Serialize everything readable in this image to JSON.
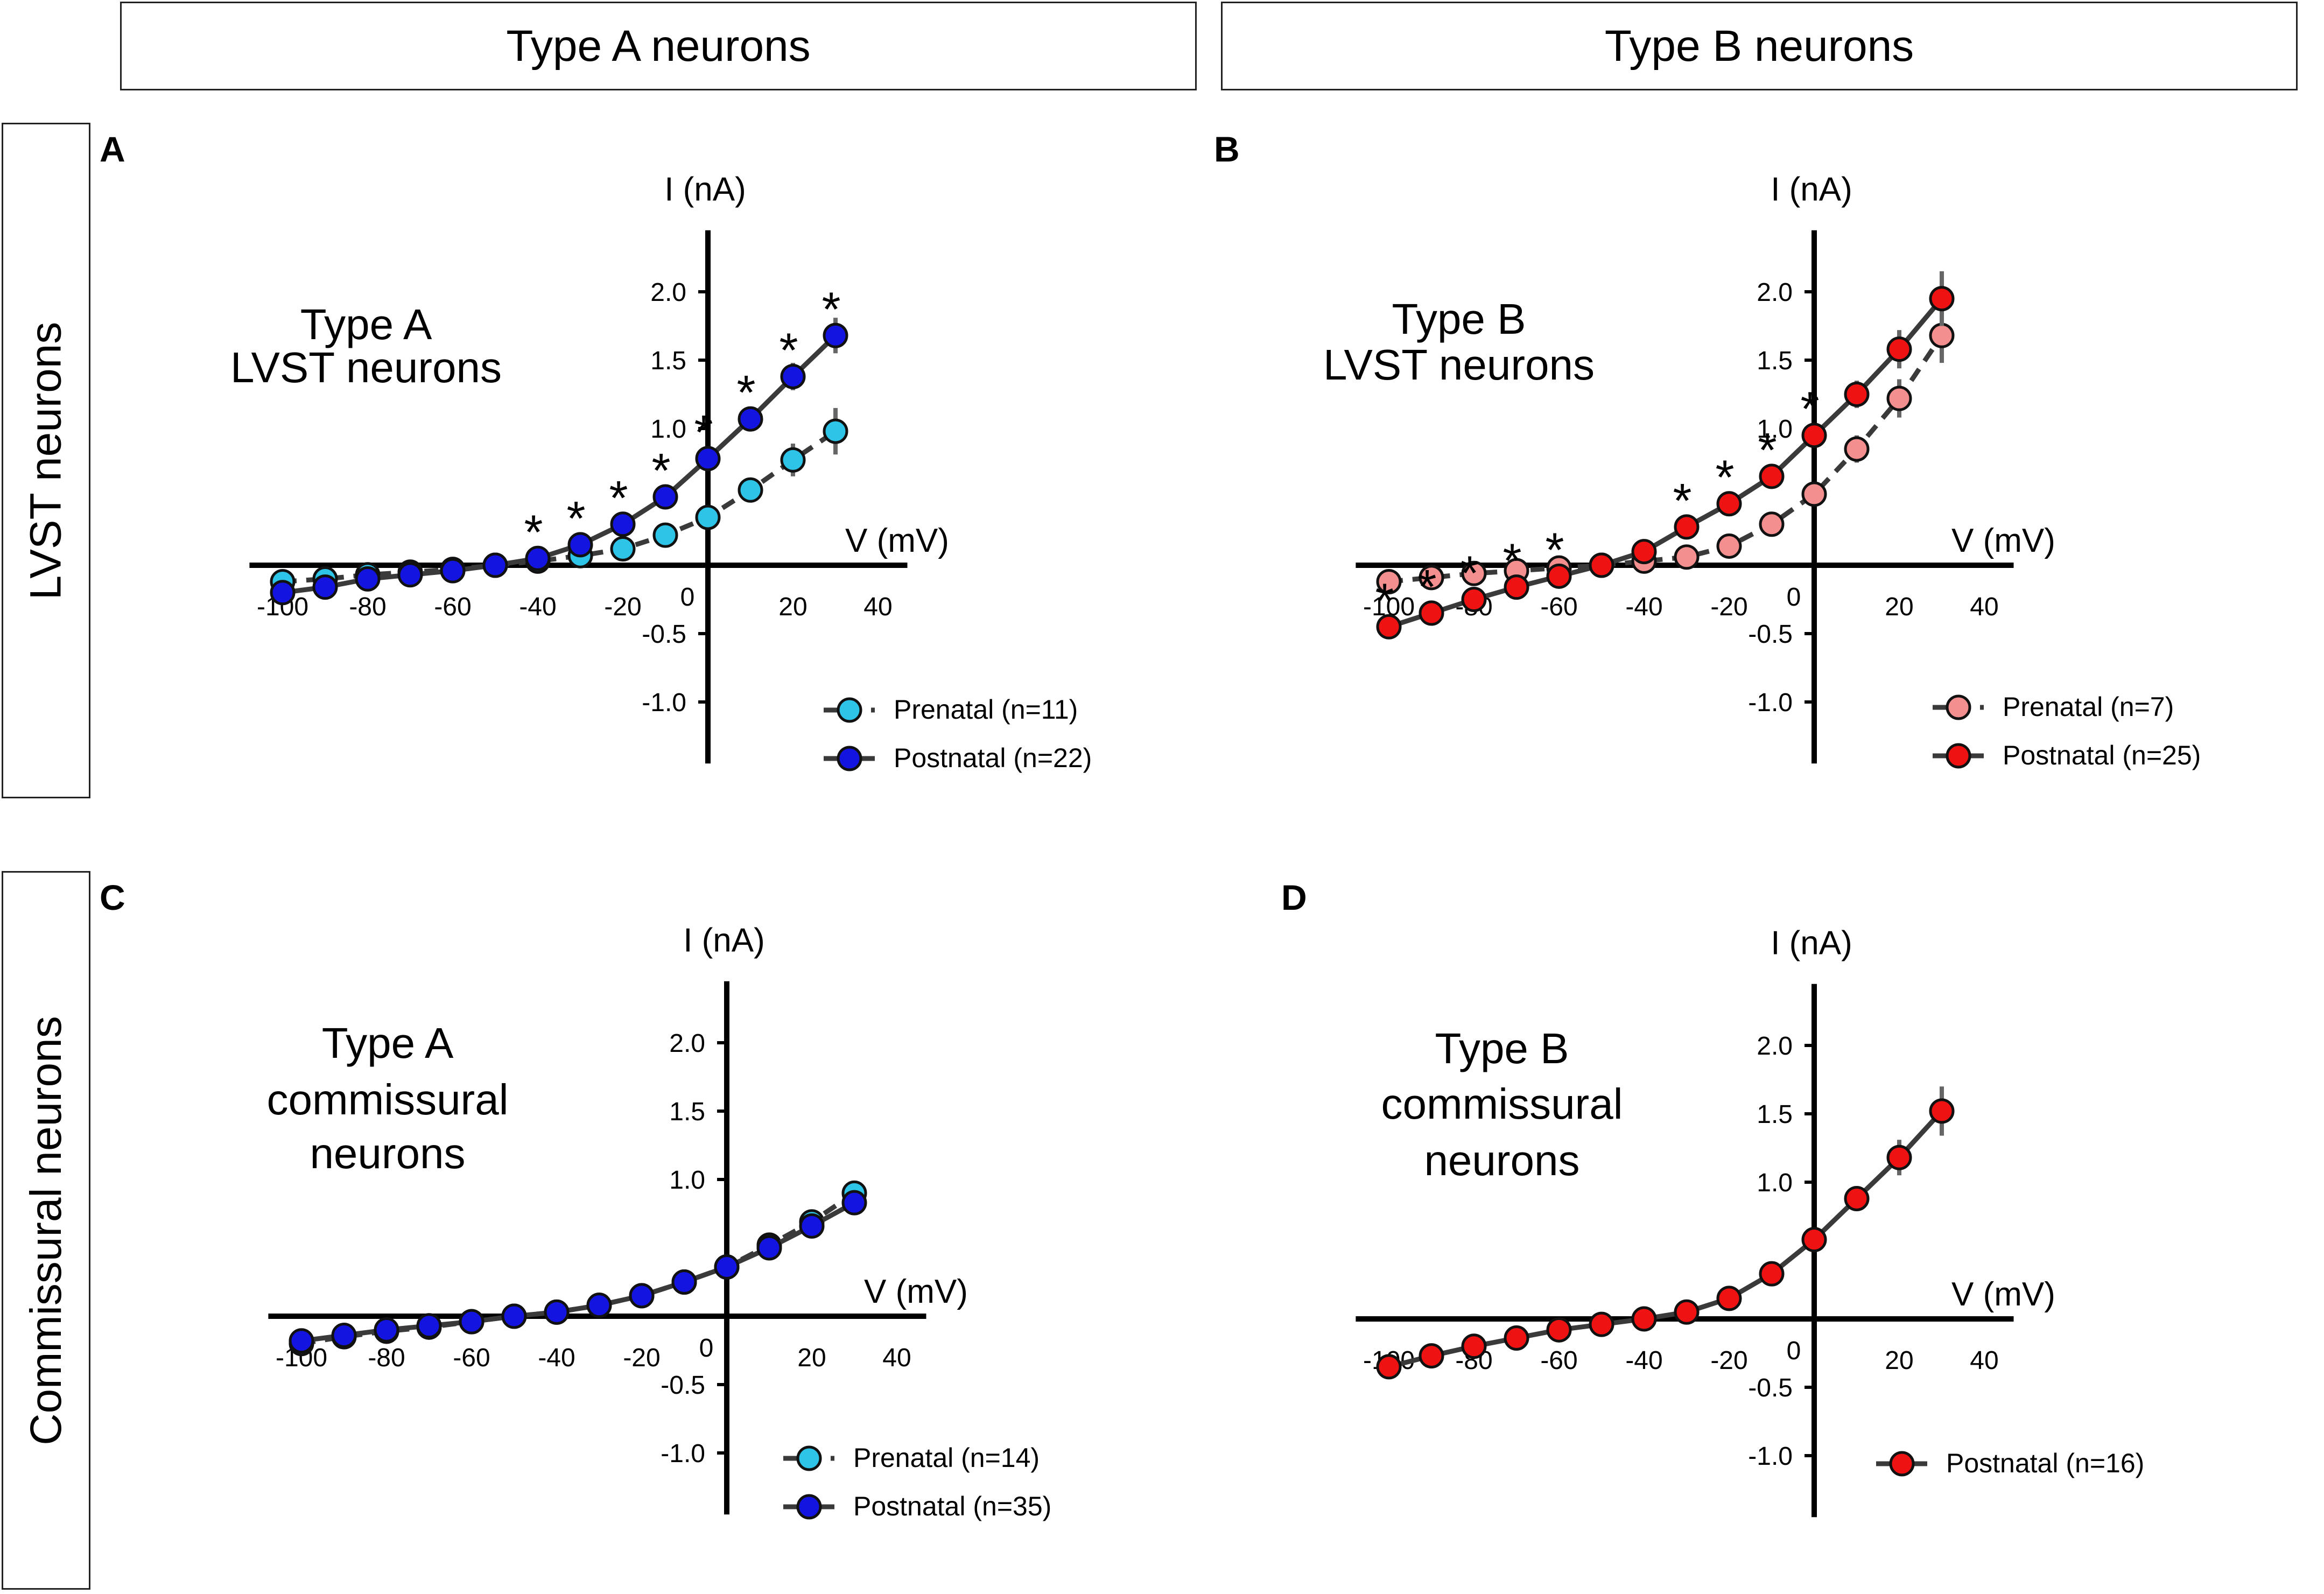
{
  "headers": {
    "col_a": "Type A neurons",
    "col_b": "Type B neurons",
    "row_1": "LVST neurons",
    "row_2": "Commissural neurons"
  },
  "colors": {
    "prenatal_a": "#2ec4e8",
    "postnatal_a": "#1414e0",
    "prenatal_b": "#f48f8f",
    "postnatal_b": "#ef1212",
    "line": "#3a3a3a",
    "marker_edge": "#111111"
  },
  "chart_data": [
    {
      "panel": "A",
      "type": "line",
      "title_lines": [
        "Type A",
        "LVST neurons"
      ],
      "xlabel": "V (mV)",
      "ylabel": "I (nA)",
      "xticks": [
        "-100",
        "-80",
        "-60",
        "-40",
        "-20",
        "0",
        "20",
        "40"
      ],
      "yticks": [
        "2.0",
        "1.5",
        "1.0",
        "-0.5",
        "-1.0"
      ],
      "x": [
        -100,
        -90,
        -80,
        -70,
        -60,
        -50,
        -40,
        -30,
        -20,
        -10,
        0,
        10,
        20,
        30
      ],
      "xlim": [
        -104,
        45
      ],
      "ylim": [
        -1.3,
        2.5
      ],
      "series": [
        {
          "name": "Prenatal (n=11)",
          "style": "dashed",
          "color": "prenatal_a",
          "values": [
            -0.12,
            -0.1,
            -0.07,
            -0.05,
            -0.03,
            0.0,
            0.03,
            0.07,
            0.12,
            0.22,
            0.35,
            0.55,
            0.77,
            0.98
          ],
          "errors": [
            0.03,
            0.03,
            0.02,
            0.02,
            0.02,
            0.02,
            0.02,
            0.03,
            0.04,
            0.05,
            0.07,
            0.09,
            0.12,
            0.17
          ]
        },
        {
          "name": "Postnatal (n=22)",
          "style": "solid",
          "color": "postnatal_a",
          "values": [
            -0.2,
            -0.16,
            -0.1,
            -0.07,
            -0.04,
            0.0,
            0.05,
            0.15,
            0.3,
            0.5,
            0.78,
            1.07,
            1.38,
            1.68
          ],
          "errors": [
            0.02,
            0.02,
            0.02,
            0.02,
            0.02,
            0.02,
            0.02,
            0.03,
            0.04,
            0.05,
            0.07,
            0.08,
            0.1,
            0.13
          ]
        }
      ],
      "significance_x": [
        -40,
        -30,
        -20,
        -10,
        0,
        10,
        20,
        30
      ],
      "significance_label": "*"
    },
    {
      "panel": "B",
      "type": "line",
      "title_lines": [
        "Type B",
        "LVST neurons"
      ],
      "xlabel": "V (mV)",
      "ylabel": "I (nA)",
      "xticks": [
        "-100",
        "-80",
        "-60",
        "-40",
        "-20",
        "0",
        "20",
        "40"
      ],
      "yticks": [
        "2.0",
        "1.5",
        "1.0",
        "-0.5",
        "-1.0"
      ],
      "x": [
        -100,
        -90,
        -80,
        -70,
        -60,
        -50,
        -40,
        -30,
        -20,
        -10,
        0,
        10,
        20,
        30
      ],
      "xlim": [
        -104,
        45
      ],
      "ylim": [
        -1.3,
        2.5
      ],
      "series": [
        {
          "name": "Prenatal (n=7)",
          "style": "dashed",
          "color": "prenatal_b",
          "values": [
            -0.12,
            -0.09,
            -0.06,
            -0.04,
            -0.02,
            0.0,
            0.03,
            0.06,
            0.14,
            0.3,
            0.52,
            0.85,
            1.22,
            1.68
          ],
          "errors": [
            0.03,
            0.03,
            0.02,
            0.02,
            0.02,
            0.02,
            0.02,
            0.03,
            0.04,
            0.05,
            0.07,
            0.1,
            0.14,
            0.2
          ]
        },
        {
          "name": "Postnatal (n=25)",
          "style": "solid",
          "color": "postnatal_b",
          "values": [
            -0.45,
            -0.35,
            -0.25,
            -0.16,
            -0.08,
            0.0,
            0.1,
            0.28,
            0.45,
            0.65,
            0.95,
            1.25,
            1.58,
            1.95
          ],
          "errors": [
            0.03,
            0.03,
            0.02,
            0.02,
            0.02,
            0.02,
            0.03,
            0.04,
            0.05,
            0.06,
            0.08,
            0.1,
            0.14,
            0.2
          ]
        }
      ],
      "significance_x": [
        -100,
        -90,
        -80,
        -70,
        -60,
        -30,
        -20,
        -10,
        0
      ],
      "significance_label": "*"
    },
    {
      "panel": "C",
      "type": "line",
      "title_lines": [
        "Type A",
        "commissural",
        "neurons"
      ],
      "xlabel": "V (mV)",
      "ylabel": "I (nA)",
      "xticks": [
        "-100",
        "-80",
        "-60",
        "-40",
        "-20",
        "0",
        "20",
        "40"
      ],
      "yticks": [
        "2.0",
        "1.5",
        "1.0",
        "-0.5",
        "-1.0"
      ],
      "x": [
        -100,
        -90,
        -80,
        -70,
        -60,
        -50,
        -40,
        -30,
        -20,
        -10,
        0,
        10,
        20,
        30
      ],
      "xlim": [
        -104,
        45
      ],
      "ylim": [
        -1.3,
        2.5
      ],
      "series": [
        {
          "name": "Prenatal (n=14)",
          "style": "dashed",
          "color": "prenatal_a",
          "values": [
            -0.2,
            -0.15,
            -0.11,
            -0.08,
            -0.04,
            0.0,
            0.03,
            0.08,
            0.15,
            0.25,
            0.36,
            0.52,
            0.69,
            0.9
          ],
          "errors": [
            0.02,
            0.02,
            0.02,
            0.02,
            0.02,
            0.02,
            0.02,
            0.02,
            0.03,
            0.03,
            0.04,
            0.05,
            0.06,
            0.08
          ]
        },
        {
          "name": "Postnatal (n=35)",
          "style": "solid",
          "color": "postnatal_a",
          "values": [
            -0.18,
            -0.14,
            -0.1,
            -0.07,
            -0.04,
            0.0,
            0.03,
            0.08,
            0.15,
            0.25,
            0.36,
            0.5,
            0.66,
            0.83
          ],
          "errors": [
            0.02,
            0.02,
            0.02,
            0.02,
            0.02,
            0.02,
            0.02,
            0.02,
            0.03,
            0.03,
            0.04,
            0.05,
            0.06,
            0.07
          ]
        }
      ],
      "significance_x": [],
      "significance_label": "*"
    },
    {
      "panel": "D",
      "type": "line",
      "title_lines": [
        "Type B",
        "commissural",
        "neurons"
      ],
      "xlabel": "V (mV)",
      "ylabel": "I (nA)",
      "xticks": [
        "-100",
        "-80",
        "-60",
        "-40",
        "-20",
        "0",
        "20",
        "40"
      ],
      "yticks": [
        "2.0",
        "1.5",
        "1.0",
        "-0.5",
        "-1.0"
      ],
      "x": [
        -100,
        -90,
        -80,
        -70,
        -60,
        -50,
        -40,
        -30,
        -20,
        -10,
        0,
        10,
        20,
        30
      ],
      "xlim": [
        -104,
        45
      ],
      "ylim": [
        -1.3,
        2.5
      ],
      "series": [
        {
          "name": "Postnatal (n=16)",
          "style": "solid",
          "color": "postnatal_b",
          "values": [
            -0.35,
            -0.27,
            -0.2,
            -0.14,
            -0.08,
            -0.04,
            0.0,
            0.05,
            0.15,
            0.33,
            0.58,
            0.88,
            1.18,
            1.52
          ],
          "errors": [
            0.02,
            0.02,
            0.02,
            0.02,
            0.02,
            0.02,
            0.02,
            0.03,
            0.03,
            0.04,
            0.06,
            0.09,
            0.13,
            0.18
          ]
        }
      ],
      "significance_x": [],
      "significance_label": "*"
    }
  ]
}
